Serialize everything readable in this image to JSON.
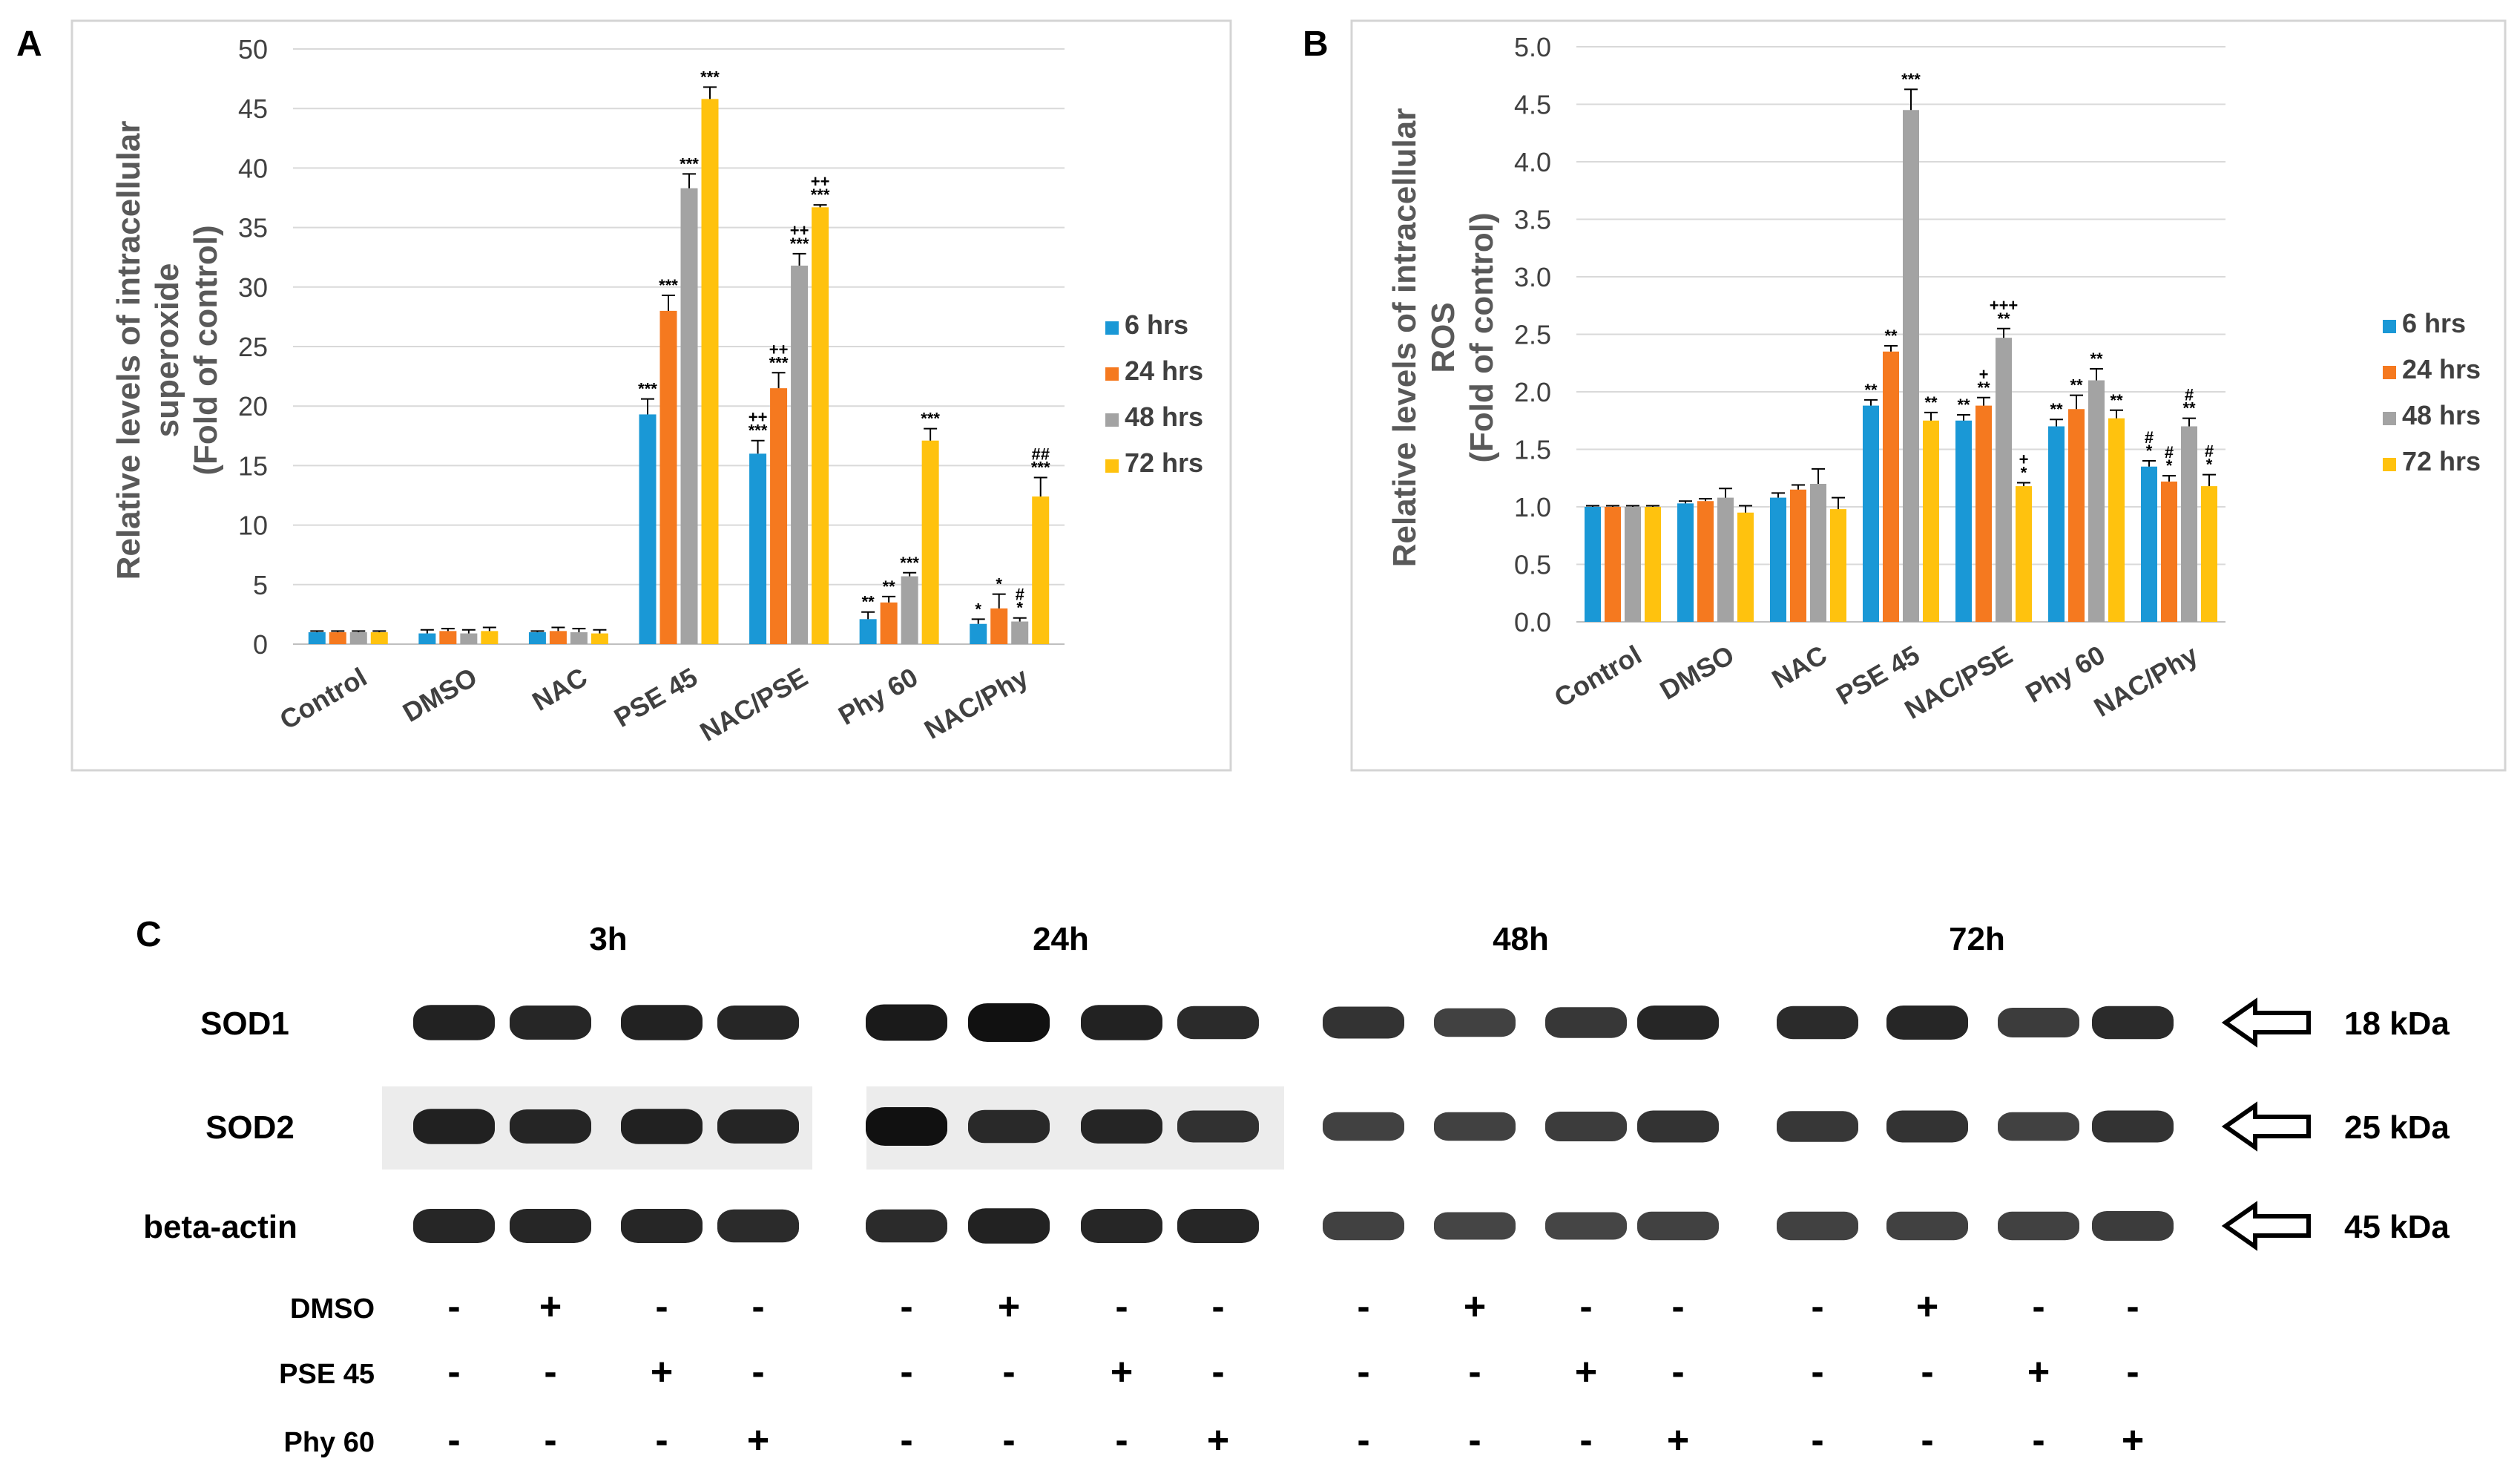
{
  "chart_data": [
    {
      "panel": "A",
      "type": "bar",
      "ylabel": [
        "Relative levels of intracellular",
        "superoxide",
        "(Fold of control)"
      ],
      "ylim": [
        0,
        50
      ],
      "yticks": [
        0,
        5,
        10,
        15,
        20,
        25,
        30,
        35,
        40,
        45,
        50
      ],
      "grid": true,
      "legend_position": "right",
      "categories": [
        "Control",
        "DMSO",
        "NAC",
        "PSE 45",
        "NAC/PSE",
        "Phy 60",
        "NAC/Phy"
      ],
      "series": [
        {
          "name": "6 hrs",
          "color": "#1a98d6",
          "values": [
            1,
            0.9,
            1,
            19.3,
            16,
            2.1,
            1.7
          ],
          "errors": [
            0.1,
            0.3,
            0.1,
            1.3,
            1.1,
            0.6,
            0.4
          ],
          "annotations": [
            [],
            [],
            [],
            [
              "***"
            ],
            [
              "***",
              "++"
            ],
            [
              "**"
            ],
            [
              "*"
            ]
          ]
        },
        {
          "name": "24 hrs",
          "color": "#f5791f",
          "values": [
            1,
            1.1,
            1.1,
            28,
            21.5,
            3.5,
            3
          ],
          "errors": [
            0.1,
            0.2,
            0.3,
            1.3,
            1.3,
            0.5,
            1.2
          ],
          "annotations": [
            [],
            [],
            [],
            [
              "***"
            ],
            [
              "***",
              "++"
            ],
            [
              "**"
            ],
            [
              "*"
            ]
          ]
        },
        {
          "name": "48 hrs",
          "color": "#a3a3a3",
          "values": [
            1,
            0.9,
            1,
            38.3,
            31.8,
            5.7,
            1.9
          ],
          "errors": [
            0.1,
            0.3,
            0.3,
            1.2,
            1,
            0.3,
            0.3
          ],
          "annotations": [
            [],
            [],
            [],
            [
              "***"
            ],
            [
              "***",
              "++"
            ],
            [
              "***"
            ],
            [
              "*",
              "#"
            ]
          ]
        },
        {
          "name": "72 hrs",
          "color": "#ffc20e",
          "values": [
            1,
            1.1,
            0.9,
            45.8,
            36.7,
            17.1,
            12.4
          ],
          "errors": [
            0.1,
            0.3,
            0.3,
            1,
            0.2,
            1,
            1.6
          ],
          "annotations": [
            [],
            [],
            [],
            [
              "***"
            ],
            [
              "***",
              "++"
            ],
            [
              "***"
            ],
            [
              "***",
              "##"
            ]
          ]
        }
      ]
    },
    {
      "panel": "B",
      "type": "bar",
      "ylabel": [
        "Relative levels of intracellular",
        "ROS",
        "(Fold of control)"
      ],
      "ylim": [
        0,
        5
      ],
      "yticks": [
        "0.0",
        "0.5",
        "1.0",
        "1.5",
        "2.0",
        "2.5",
        "3.0",
        "3.5",
        "4.0",
        "4.5",
        "5.0"
      ],
      "grid": true,
      "legend_position": "right",
      "categories": [
        "Control",
        "DMSO",
        "NAC",
        "PSE 45",
        "NAC/PSE",
        "Phy 60",
        "NAC/Phy"
      ],
      "series": [
        {
          "name": "6 hrs",
          "color": "#1a98d6",
          "values": [
            1,
            1.03,
            1.08,
            1.88,
            1.75,
            1.7,
            1.35
          ],
          "errors": [
            0.01,
            0.02,
            0.04,
            0.05,
            0.05,
            0.06,
            0.05
          ],
          "annotations": [
            [],
            [],
            [],
            [
              "**"
            ],
            [
              "**"
            ],
            [
              "**"
            ],
            [
              "*",
              "#"
            ]
          ]
        },
        {
          "name": "24 hrs",
          "color": "#f5791f",
          "values": [
            1,
            1.05,
            1.15,
            2.35,
            1.88,
            1.85,
            1.22
          ],
          "errors": [
            0.01,
            0.02,
            0.04,
            0.05,
            0.07,
            0.12,
            0.05
          ],
          "annotations": [
            [],
            [],
            [],
            [
              "**"
            ],
            [
              "**",
              "+"
            ],
            [
              "**"
            ],
            [
              "*",
              "#"
            ]
          ]
        },
        {
          "name": "48 hrs",
          "color": "#a3a3a3",
          "values": [
            1,
            1.08,
            1.2,
            4.45,
            2.47,
            2.1,
            1.7
          ],
          "errors": [
            0.01,
            0.08,
            0.13,
            0.18,
            0.08,
            0.1,
            0.07
          ],
          "annotations": [
            [],
            [],
            [],
            [
              "***"
            ],
            [
              "**",
              "+++"
            ],
            [
              "**"
            ],
            [
              "**",
              "#"
            ]
          ]
        },
        {
          "name": "72 hrs",
          "color": "#ffc20e",
          "values": [
            1,
            0.95,
            0.98,
            1.75,
            1.18,
            1.77,
            1.18
          ],
          "errors": [
            0.01,
            0.06,
            0.1,
            0.07,
            0.03,
            0.07,
            0.1
          ],
          "annotations": [
            [],
            [],
            [],
            [
              "**"
            ],
            [
              "*",
              "+"
            ],
            [
              "**"
            ],
            [
              "*",
              "#"
            ]
          ]
        }
      ]
    }
  ],
  "panel_c": {
    "label": "C",
    "timepoints": [
      "3h",
      "24h",
      "48h",
      "72h"
    ],
    "bands": [
      {
        "protein": "SOD1",
        "size": "18 kDa",
        "intensities": [
          [
            0.85,
            0.8,
            0.85,
            0.8
          ],
          [
            0.9,
            1,
            0.85,
            0.75
          ],
          [
            0.7,
            0.55,
            0.65,
            0.8
          ],
          [
            0.75,
            0.8,
            0.6,
            0.75
          ]
        ]
      },
      {
        "protein": "SOD2",
        "size": "25 kDa",
        "intensities": [
          [
            0.85,
            0.8,
            0.85,
            0.8
          ],
          [
            1,
            0.75,
            0.8,
            0.7
          ],
          [
            0.55,
            0.55,
            0.6,
            0.7
          ],
          [
            0.65,
            0.7,
            0.55,
            0.7
          ]
        ]
      },
      {
        "protein": "beta-actin",
        "size": "45 kDa",
        "intensities": [
          [
            0.8,
            0.8,
            0.8,
            0.75
          ],
          [
            0.75,
            0.85,
            0.8,
            0.8
          ],
          [
            0.55,
            0.5,
            0.5,
            0.55
          ],
          [
            0.55,
            0.55,
            0.55,
            0.6
          ]
        ]
      }
    ],
    "treatments": [
      {
        "name": "DMSO",
        "pattern": [
          "-",
          "+",
          "-",
          "-"
        ]
      },
      {
        "name": "PSE 45",
        "pattern": [
          "-",
          "-",
          "+",
          "-"
        ]
      },
      {
        "name": "Phy 60",
        "pattern": [
          "-",
          "-",
          "-",
          "+"
        ]
      }
    ]
  }
}
